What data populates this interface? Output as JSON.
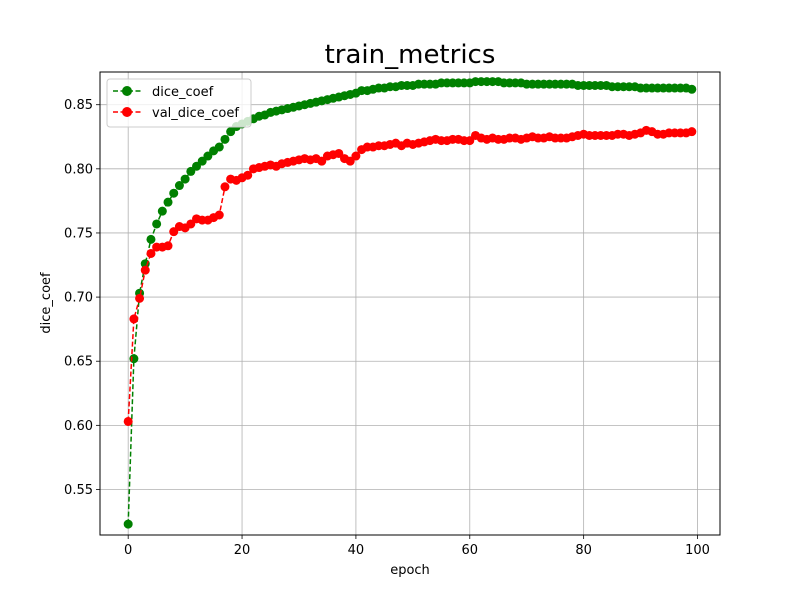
{
  "chart_data": {
    "type": "line",
    "title": "train_metrics",
    "xlabel": "epoch",
    "ylabel": "dice_coef",
    "xlim": [
      -4.95,
      103.95
    ],
    "ylim": [
      0.5145,
      0.8755
    ],
    "xticks": [
      0,
      20,
      40,
      60,
      80,
      100
    ],
    "yticks": [
      0.55,
      0.6,
      0.65,
      0.7,
      0.75,
      0.8,
      0.85
    ],
    "ytick_labels": [
      "0.55",
      "0.60",
      "0.65",
      "0.70",
      "0.75",
      "0.80",
      "0.85"
    ],
    "grid": true,
    "legend_position": "upper-left",
    "series": [
      {
        "name": "dice_coef",
        "color": "#008000",
        "values": [
          0.523,
          0.652,
          0.703,
          0.726,
          0.745,
          0.757,
          0.767,
          0.774,
          0.781,
          0.787,
          0.792,
          0.798,
          0.802,
          0.806,
          0.81,
          0.814,
          0.817,
          0.823,
          0.829,
          0.833,
          0.835,
          0.837,
          0.839,
          0.841,
          0.842,
          0.844,
          0.845,
          0.846,
          0.847,
          0.848,
          0.849,
          0.85,
          0.851,
          0.852,
          0.853,
          0.854,
          0.855,
          0.856,
          0.857,
          0.858,
          0.859,
          0.861,
          0.861,
          0.862,
          0.863,
          0.863,
          0.864,
          0.864,
          0.865,
          0.865,
          0.865,
          0.866,
          0.866,
          0.866,
          0.866,
          0.867,
          0.867,
          0.867,
          0.867,
          0.867,
          0.867,
          0.868,
          0.868,
          0.868,
          0.868,
          0.868,
          0.867,
          0.867,
          0.867,
          0.867,
          0.866,
          0.866,
          0.866,
          0.866,
          0.866,
          0.866,
          0.866,
          0.866,
          0.866,
          0.865,
          0.865,
          0.865,
          0.865,
          0.865,
          0.865,
          0.864,
          0.864,
          0.864,
          0.864,
          0.864,
          0.863,
          0.863,
          0.863,
          0.863,
          0.863,
          0.863,
          0.863,
          0.863,
          0.863,
          0.862
        ]
      },
      {
        "name": "val_dice_coef",
        "color": "#ff0000",
        "values": [
          0.603,
          0.683,
          0.699,
          0.721,
          0.734,
          0.739,
          0.739,
          0.74,
          0.751,
          0.755,
          0.754,
          0.757,
          0.761,
          0.76,
          0.76,
          0.762,
          0.764,
          0.786,
          0.792,
          0.791,
          0.793,
          0.795,
          0.8,
          0.801,
          0.802,
          0.803,
          0.802,
          0.804,
          0.805,
          0.806,
          0.807,
          0.808,
          0.807,
          0.808,
          0.806,
          0.81,
          0.811,
          0.812,
          0.808,
          0.806,
          0.81,
          0.815,
          0.817,
          0.817,
          0.818,
          0.818,
          0.819,
          0.82,
          0.818,
          0.82,
          0.819,
          0.82,
          0.821,
          0.822,
          0.823,
          0.822,
          0.822,
          0.823,
          0.823,
          0.822,
          0.822,
          0.826,
          0.824,
          0.823,
          0.824,
          0.823,
          0.823,
          0.824,
          0.824,
          0.823,
          0.824,
          0.825,
          0.824,
          0.824,
          0.825,
          0.824,
          0.824,
          0.824,
          0.825,
          0.826,
          0.827,
          0.826,
          0.826,
          0.826,
          0.826,
          0.826,
          0.827,
          0.827,
          0.826,
          0.827,
          0.828,
          0.83,
          0.829,
          0.827,
          0.827,
          0.828,
          0.828,
          0.828,
          0.828,
          0.829
        ]
      }
    ]
  }
}
